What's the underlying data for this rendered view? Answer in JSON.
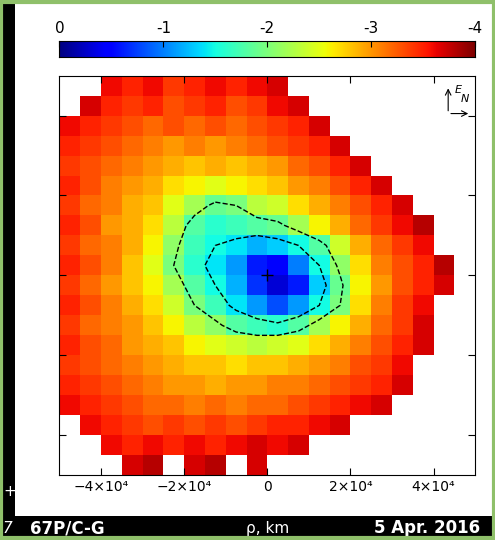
{
  "chart_data": {
    "type": "heatmap",
    "x_label": "ρ, km",
    "annotations": [
      "67P/C-G",
      "5 Apr. 2016"
    ],
    "slide_fragments": [
      "+",
      "7"
    ],
    "compass": {
      "up": "E",
      "right": "N"
    },
    "xlim": [
      -50000,
      50000
    ],
    "ylim": [
      -50000,
      50000
    ],
    "xticks": [
      {
        "value": -40000,
        "label": "−4×10⁴"
      },
      {
        "value": -20000,
        "label": "−2×10⁴"
      },
      0,
      {
        "value": 20000,
        "label": "2×10⁴"
      },
      {
        "value": 40000,
        "label": "4×10⁴"
      }
    ],
    "yticks": [
      -40000,
      -20000,
      0,
      20000,
      40000
    ],
    "tick_labels": "x",
    "x": [
      -47500,
      -42500,
      -37500,
      -32500,
      -27500,
      -22500,
      -17500,
      -12500,
      -7500,
      -2500,
      2500,
      7500,
      12500,
      17500,
      22500,
      27500,
      32500,
      37500,
      42500,
      47500
    ],
    "y": [
      47500,
      42500,
      37500,
      32500,
      27500,
      22500,
      17500,
      12500,
      7500,
      2500,
      -2500,
      -7500,
      -12500,
      -17500,
      -22500,
      -27500,
      -32500,
      -37500,
      -42500,
      -47500
    ],
    "cells": [
      [
        null,
        null,
        -3.6,
        -3.5,
        -3.6,
        -3.4,
        -3.5,
        -3.6,
        -3.5,
        -3.6,
        -3.7,
        null,
        null,
        null,
        null,
        null,
        null,
        null,
        null,
        null
      ],
      [
        null,
        -3.7,
        -3.5,
        -3.4,
        -3.5,
        -3.3,
        -3.4,
        -3.5,
        -3.3,
        -3.4,
        -3.6,
        -3.7,
        null,
        null,
        null,
        null,
        null,
        null,
        null,
        null
      ],
      [
        -3.6,
        -3.5,
        -3.4,
        -3.3,
        -3.2,
        -3.3,
        -3.2,
        -3.3,
        -3.2,
        -3.3,
        -3.4,
        -3.5,
        -3.7,
        null,
        null,
        null,
        null,
        null,
        null,
        null
      ],
      [
        -3.5,
        -3.4,
        -3.3,
        -3.2,
        -3.1,
        -3.0,
        -3.1,
        -3.0,
        -3.1,
        -3.2,
        -3.3,
        -3.4,
        -3.5,
        -3.7,
        null,
        null,
        null,
        null,
        null,
        null
      ],
      [
        -3.4,
        -3.3,
        -3.2,
        -3.1,
        -3.0,
        -2.9,
        -2.8,
        -2.9,
        -2.8,
        -2.9,
        -3.0,
        -3.2,
        -3.3,
        -3.5,
        -3.7,
        null,
        null,
        null,
        null,
        null
      ],
      [
        -3.5,
        -3.3,
        -3.1,
        -3.0,
        -2.9,
        -2.7,
        -2.6,
        -2.5,
        -2.6,
        -2.7,
        -2.8,
        -3.0,
        -3.1,
        -3.3,
        -3.5,
        -3.7,
        null,
        null,
        null,
        null
      ],
      [
        -3.4,
        -3.2,
        -3.1,
        -2.9,
        -2.8,
        -2.5,
        -2.2,
        -1.9,
        -2.0,
        -2.3,
        -2.4,
        -2.7,
        -2.9,
        -3.1,
        -3.3,
        -3.5,
        -3.7,
        null,
        null,
        null
      ],
      [
        -3.5,
        -3.3,
        -3.0,
        -2.9,
        -2.7,
        -2.3,
        -1.8,
        -1.6,
        -1.7,
        -1.8,
        -1.9,
        -2.2,
        -2.6,
        -2.9,
        -3.2,
        -3.4,
        -3.6,
        -3.8,
        null,
        null
      ],
      [
        -3.4,
        -3.2,
        -3.1,
        -2.9,
        -2.6,
        -2.1,
        -1.7,
        -1.5,
        -1.4,
        -1.2,
        -1.3,
        -1.5,
        -1.8,
        -2.4,
        -2.9,
        -3.2,
        -3.4,
        -3.6,
        null,
        null
      ],
      [
        -3.5,
        -3.3,
        -3.1,
        -2.8,
        -2.5,
        -2.0,
        -1.6,
        -1.4,
        -1.1,
        -0.6,
        -0.5,
        -1.0,
        -1.5,
        -2.1,
        -2.7,
        -3.1,
        -3.3,
        -3.5,
        -3.8,
        null
      ],
      [
        -3.4,
        -3.2,
        -3.0,
        -2.8,
        -2.6,
        -2.2,
        -1.8,
        -1.5,
        -1.2,
        -0.7,
        -0.3,
        -0.6,
        -1.3,
        -1.9,
        -2.6,
        -3.0,
        -3.3,
        -3.5,
        -3.7,
        null
      ],
      [
        -3.5,
        -3.3,
        -3.1,
        -2.9,
        -2.7,
        -2.4,
        -2.0,
        -1.7,
        -1.4,
        -1.1,
        -0.8,
        -1.1,
        -1.5,
        -2.0,
        -2.7,
        -3.1,
        -3.4,
        -3.6,
        null,
        null
      ],
      [
        -3.4,
        -3.2,
        -3.1,
        -3.0,
        -2.8,
        -2.6,
        -2.3,
        -2.1,
        -1.8,
        -1.7,
        -1.6,
        -1.8,
        -2.2,
        -2.6,
        -2.9,
        -3.2,
        -3.4,
        -3.7,
        null,
        null
      ],
      [
        -3.5,
        -3.3,
        -3.2,
        -3.0,
        -2.9,
        -2.8,
        -2.6,
        -2.5,
        -2.4,
        -2.3,
        -2.4,
        -2.5,
        -2.7,
        -2.9,
        -3.1,
        -3.3,
        -3.5,
        -3.7,
        null,
        null
      ],
      [
        -3.4,
        -3.3,
        -3.2,
        -3.1,
        -3.0,
        -2.9,
        -2.8,
        -2.8,
        -2.7,
        -2.8,
        -2.8,
        -2.9,
        -3.0,
        -3.1,
        -3.3,
        -3.4,
        -3.6,
        null,
        null,
        null
      ],
      [
        -3.5,
        -3.4,
        -3.3,
        -3.2,
        -3.1,
        -3.0,
        -3.0,
        -2.9,
        -3.0,
        -3.0,
        -3.1,
        -3.1,
        -3.2,
        -3.3,
        -3.4,
        -3.5,
        -3.7,
        null,
        null,
        null
      ],
      [
        -3.6,
        -3.5,
        -3.4,
        -3.3,
        -3.2,
        -3.2,
        -3.1,
        -3.2,
        -3.1,
        -3.2,
        -3.2,
        -3.3,
        -3.4,
        -3.5,
        -3.6,
        -3.7,
        null,
        null,
        null,
        null
      ],
      [
        null,
        -3.6,
        -3.5,
        -3.4,
        -3.3,
        -3.4,
        -3.3,
        -3.4,
        -3.3,
        -3.4,
        -3.5,
        -3.5,
        -3.6,
        -3.7,
        null,
        null,
        null,
        null,
        null,
        null
      ],
      [
        null,
        null,
        -3.6,
        -3.5,
        -3.6,
        -3.5,
        -3.6,
        -3.5,
        -3.6,
        -3.7,
        -3.6,
        -3.7,
        null,
        null,
        null,
        null,
        null,
        null,
        null,
        null
      ],
      [
        null,
        null,
        null,
        -3.7,
        -3.8,
        null,
        -3.7,
        -3.8,
        null,
        -3.7,
        null,
        null,
        null,
        null,
        null,
        null,
        null,
        null,
        null,
        null
      ]
    ],
    "colorbar_range": [
      0,
      -4
    ],
    "colorbar_ticks": [
      0,
      -1,
      -2,
      -3,
      -4
    ],
    "contour_levels": [
      -2.0,
      -1.5
    ],
    "nucleus": [
      0,
      0
    ]
  }
}
